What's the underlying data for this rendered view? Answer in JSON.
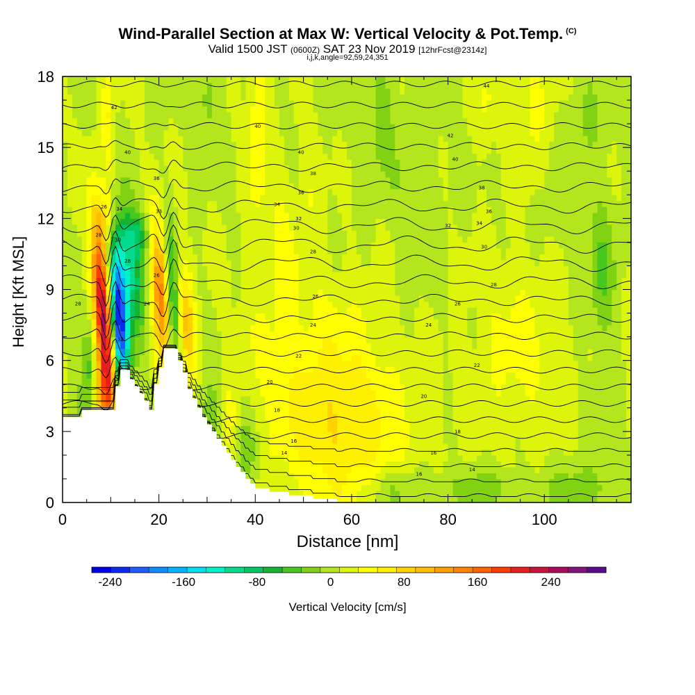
{
  "title": "Wind-Parallel Section at Max W: Vertical Velocity & Pot.Temp.",
  "title_tag": "(C)",
  "subtitle_main_a": "Valid 1500 JST",
  "subtitle_small_a": "(0600Z)",
  "subtitle_main_b": "SAT 23 Nov 2019",
  "subtitle_small_b": "[12hrFcst@2314z]",
  "params": "i,j,k,angle=92,59,24,351",
  "colorbar_label": "Vertical Velocity [cm/s]",
  "chart_data": {
    "type": "heatmap",
    "xlabel": "Distance [nm]",
    "ylabel": "Height [Kft MSL]",
    "xlim": [
      0,
      118
    ],
    "ylim": [
      0,
      18
    ],
    "x_ticks": [
      "0",
      "20",
      "40",
      "60",
      "80",
      "100"
    ],
    "y_ticks": [
      "0",
      "3",
      "6",
      "9",
      "12",
      "15",
      "18"
    ],
    "colorbar": {
      "min": -260,
      "max": 300,
      "tick_labels": [
        "-240",
        "-160",
        "-80",
        "0",
        "80",
        "160",
        "240"
      ],
      "tick_values": [
        -240,
        -160,
        -80,
        0,
        80,
        160,
        240
      ],
      "colors": [
        "#0000e6",
        "#0a28f0",
        "#1e5aff",
        "#0a8cff",
        "#00b4ff",
        "#00dcf0",
        "#00f0c8",
        "#00dc8c",
        "#00c864",
        "#14b432",
        "#46c81e",
        "#82d214",
        "#b4e61e",
        "#ddf50a",
        "#ffff00",
        "#fff000",
        "#ffd200",
        "#ffbe00",
        "#ffa000",
        "#ff8200",
        "#ff6400",
        "#ff3c00",
        "#e61e1e",
        "#c8143c",
        "#aa0a5a",
        "#82147d",
        "#5a0a8c"
      ]
    },
    "terrain_profile": [
      [
        0,
        3.6
      ],
      [
        4,
        3.6
      ],
      [
        4,
        3.9
      ],
      [
        11,
        3.9
      ],
      [
        11,
        4.9
      ],
      [
        12,
        4.9
      ],
      [
        12,
        5.6
      ],
      [
        14,
        5.6
      ],
      [
        14,
        5.2
      ],
      [
        15,
        5.2
      ],
      [
        15,
        4.9
      ],
      [
        16,
        4.9
      ],
      [
        16,
        4.6
      ],
      [
        17,
        4.6
      ],
      [
        17,
        4.3
      ],
      [
        18,
        4.3
      ],
      [
        18,
        3.9
      ],
      [
        19,
        3.9
      ],
      [
        19,
        5.0
      ],
      [
        20,
        5.0
      ],
      [
        20,
        5.7
      ],
      [
        21,
        5.7
      ],
      [
        21,
        6.5
      ],
      [
        24,
        6.5
      ],
      [
        24,
        6.0
      ],
      [
        25,
        6.0
      ],
      [
        25,
        5.5
      ],
      [
        26,
        5.5
      ],
      [
        26,
        4.8
      ],
      [
        27,
        4.8
      ],
      [
        27,
        4.4
      ],
      [
        28,
        4.4
      ],
      [
        28,
        4.0
      ],
      [
        29,
        4.0
      ],
      [
        29,
        3.6
      ],
      [
        30,
        3.6
      ],
      [
        30,
        3.3
      ],
      [
        31,
        3.3
      ],
      [
        31,
        3.0
      ],
      [
        32,
        3.0
      ],
      [
        32,
        2.7
      ],
      [
        33,
        2.7
      ],
      [
        33,
        2.4
      ],
      [
        34,
        2.4
      ],
      [
        34,
        2.1
      ],
      [
        35,
        2.1
      ],
      [
        35,
        1.8
      ],
      [
        36,
        1.8
      ],
      [
        36,
        1.5
      ],
      [
        37,
        1.5
      ],
      [
        37,
        1.3
      ],
      [
        38,
        1.3
      ],
      [
        38,
        1.0
      ],
      [
        39,
        1.0
      ],
      [
        39,
        0.8
      ],
      [
        40,
        0.8
      ],
      [
        40,
        0.6
      ],
      [
        43,
        0.6
      ],
      [
        43,
        0.45
      ],
      [
        47,
        0.45
      ],
      [
        47,
        0.3
      ],
      [
        52,
        0.3
      ],
      [
        52,
        0.15
      ],
      [
        57,
        0.15
      ],
      [
        57,
        0
      ],
      [
        118,
        0
      ]
    ],
    "w_features": [
      {
        "x": 8.5,
        "z": 7.8,
        "sx": 1.3,
        "sz": 2.8,
        "amp": 250,
        "tilt": 0.35
      },
      {
        "x": 8.2,
        "z": 4.6,
        "sx": 1.6,
        "sz": 0.9,
        "amp": 80,
        "tilt": 0
      },
      {
        "x": 11.8,
        "z": 7.5,
        "sx": 1.2,
        "sz": 2.0,
        "amp": -230,
        "tilt": 0.3
      },
      {
        "x": 13.5,
        "z": 9.8,
        "sx": 2.4,
        "sz": 1.8,
        "amp": -110,
        "tilt": 0.35
      },
      {
        "x": 15.5,
        "z": 11.3,
        "sx": 2.2,
        "sz": 0.6,
        "amp": -55,
        "tilt": 0
      },
      {
        "x": 5.5,
        "z": 5.5,
        "sx": 1.2,
        "sz": 1.8,
        "amp": -60,
        "tilt": 0
      },
      {
        "x": 20.5,
        "z": 9.0,
        "sx": 1.4,
        "sz": 2.2,
        "amp": 150,
        "tilt": 0.25
      },
      {
        "x": 22.8,
        "z": 8.5,
        "sx": 1.1,
        "sz": 2.4,
        "amp": -110,
        "tilt": 0.3
      },
      {
        "x": 25.5,
        "z": 7.5,
        "sx": 1.4,
        "sz": 1.6,
        "amp": 90,
        "tilt": 0.2
      },
      {
        "x": 9.0,
        "z": 12.0,
        "sx": 1.4,
        "sz": 0.9,
        "amp": 45,
        "tilt": 0
      },
      {
        "x": 9.5,
        "z": 16.5,
        "sx": 0.9,
        "sz": 2.0,
        "amp": 40,
        "tilt": 0
      },
      {
        "x": 40.5,
        "z": 16.0,
        "sx": 1.3,
        "sz": 2.5,
        "amp": 45,
        "tilt": 0
      },
      {
        "x": 59.0,
        "z": 2.6,
        "sx": 9.0,
        "sz": 2.5,
        "amp": 50,
        "tilt": 0
      },
      {
        "x": 52.0,
        "z": 5.8,
        "sx": 10.0,
        "sz": 2.8,
        "amp": 30,
        "tilt": 0
      },
      {
        "x": 95.0,
        "z": 6.5,
        "sx": 7.0,
        "sz": 2.8,
        "amp": 28,
        "tilt": 0
      },
      {
        "x": 97.0,
        "z": 16.5,
        "sx": 3.0,
        "sz": 2.0,
        "amp": 28,
        "tilt": 0
      },
      {
        "x": 88.0,
        "z": 17.0,
        "sx": 1.5,
        "sz": 1.3,
        "amp": 26,
        "tilt": 0
      },
      {
        "x": 52.0,
        "z": 13.5,
        "sx": 2.0,
        "sz": 1.5,
        "amp": 20,
        "tilt": 0
      },
      {
        "x": 65.0,
        "z": 15.0,
        "sx": 5.0,
        "sz": 2.0,
        "amp": -10,
        "tilt": 0
      },
      {
        "x": 66.0,
        "z": 16.8,
        "sx": 1.5,
        "sz": 1.5,
        "amp": -30,
        "tilt": 0
      },
      {
        "x": 30.0,
        "z": 17.0,
        "sx": 1.5,
        "sz": 1.3,
        "amp": -30,
        "tilt": 0
      },
      {
        "x": 112.0,
        "z": 9.5,
        "sx": 2.0,
        "sz": 2.3,
        "amp": -40,
        "tilt": 0
      },
      {
        "x": 109.0,
        "z": 16.0,
        "sx": 3.0,
        "sz": 1.5,
        "amp": -20,
        "tilt": 0
      },
      {
        "x": 70.0,
        "z": 0.5,
        "sx": 6.0,
        "sz": 0.7,
        "amp": -35,
        "tilt": 0
      },
      {
        "x": 88.0,
        "z": 0.6,
        "sx": 5.0,
        "sz": 0.6,
        "amp": -30,
        "tilt": 0
      },
      {
        "x": 108.0,
        "z": 0.6,
        "sx": 6.0,
        "sz": 0.8,
        "amp": -30,
        "tilt": 0
      },
      {
        "x": 31.0,
        "z": 3.0,
        "sx": 2.0,
        "sz": 1.5,
        "amp": -50,
        "tilt": 0
      },
      {
        "x": 38.0,
        "z": 2.2,
        "sx": 1.6,
        "sz": 1.1,
        "amp": -40,
        "tilt": 0
      },
      {
        "x": 34.0,
        "z": 3.3,
        "sx": 1.5,
        "sz": 1.2,
        "amp": 35,
        "tilt": 0
      },
      {
        "x": 45.0,
        "z": 11.0,
        "sx": 3.0,
        "sz": 2.0,
        "amp": 25,
        "tilt": 0
      },
      {
        "x": 74.0,
        "z": 12.5,
        "sx": 4.0,
        "sz": 3.0,
        "amp": -12,
        "tilt": 0
      },
      {
        "x": 102.0,
        "z": 12.0,
        "sx": 3.0,
        "sz": 2.0,
        "amp": -12,
        "tilt": 0
      }
    ],
    "theta_isentropes": {
      "interval_C": 2,
      "labels": [
        {
          "x": 3.2,
          "z": 8.4,
          "text": "28"
        },
        {
          "x": 7.5,
          "z": 11.3,
          "text": "28"
        },
        {
          "x": 11.5,
          "z": 11.1,
          "text": "30"
        },
        {
          "x": 8.6,
          "z": 12.5,
          "text": "26"
        },
        {
          "x": 11.8,
          "z": 12.4,
          "text": "34"
        },
        {
          "x": 13.5,
          "z": 10.2,
          "text": "28"
        },
        {
          "x": 12.0,
          "z": 6.9,
          "text": "32"
        },
        {
          "x": 20.0,
          "z": 12.3,
          "text": "33"
        },
        {
          "x": 19.5,
          "z": 9.6,
          "text": "26"
        },
        {
          "x": 17.5,
          "z": 8.4,
          "text": "24"
        },
        {
          "x": 13.5,
          "z": 14.8,
          "text": "40"
        },
        {
          "x": 19.5,
          "z": 13.7,
          "text": "36"
        },
        {
          "x": 10.7,
          "z": 16.7,
          "text": "42"
        },
        {
          "x": 40.5,
          "z": 15.9,
          "text": "40"
        },
        {
          "x": 49.5,
          "z": 14.8,
          "text": "40"
        },
        {
          "x": 52.0,
          "z": 13.9,
          "text": "38"
        },
        {
          "x": 44.5,
          "z": 12.6,
          "text": "34"
        },
        {
          "x": 49.5,
          "z": 13.1,
          "text": "36"
        },
        {
          "x": 49.0,
          "z": 12.0,
          "text": "32"
        },
        {
          "x": 48.5,
          "z": 11.6,
          "text": "30"
        },
        {
          "x": 52.0,
          "z": 10.6,
          "text": "28"
        },
        {
          "x": 52.5,
          "z": 8.7,
          "text": "26"
        },
        {
          "x": 52.0,
          "z": 7.5,
          "text": "24"
        },
        {
          "x": 49.0,
          "z": 6.2,
          "text": "22"
        },
        {
          "x": 43.0,
          "z": 5.1,
          "text": "20"
        },
        {
          "x": 44.5,
          "z": 3.9,
          "text": "18"
        },
        {
          "x": 48.0,
          "z": 2.6,
          "text": "16"
        },
        {
          "x": 46.0,
          "z": 2.1,
          "text": "14"
        },
        {
          "x": 80.5,
          "z": 15.5,
          "text": "42"
        },
        {
          "x": 81.5,
          "z": 14.5,
          "text": "40"
        },
        {
          "x": 87.0,
          "z": 13.3,
          "text": "38"
        },
        {
          "x": 88.5,
          "z": 12.3,
          "text": "36"
        },
        {
          "x": 86.5,
          "z": 11.8,
          "text": "34"
        },
        {
          "x": 80.0,
          "z": 11.7,
          "text": "32"
        },
        {
          "x": 87.5,
          "z": 10.8,
          "text": "30"
        },
        {
          "x": 89.5,
          "z": 9.2,
          "text": "28"
        },
        {
          "x": 82.0,
          "z": 8.4,
          "text": "26"
        },
        {
          "x": 76.0,
          "z": 7.5,
          "text": "24"
        },
        {
          "x": 86.0,
          "z": 5.8,
          "text": "22"
        },
        {
          "x": 75.0,
          "z": 4.5,
          "text": "20"
        },
        {
          "x": 82.0,
          "z": 3.0,
          "text": "18"
        },
        {
          "x": 77.0,
          "z": 2.1,
          "text": "16"
        },
        {
          "x": 85.0,
          "z": 1.4,
          "text": "14"
        },
        {
          "x": 74.0,
          "z": 1.2,
          "text": "16"
        },
        {
          "x": 88.0,
          "z": 17.6,
          "text": "44"
        }
      ]
    }
  }
}
